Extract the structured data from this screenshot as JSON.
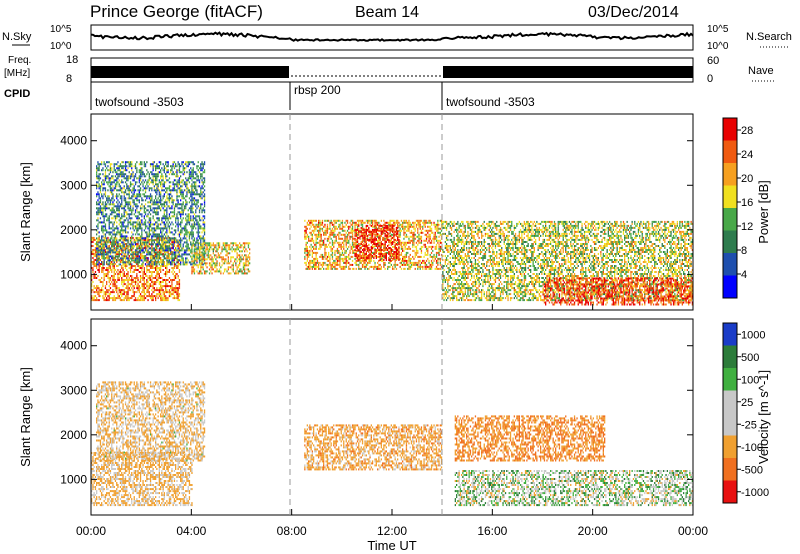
{
  "header": {
    "station": "Prince George (fitACF)",
    "beam": "Beam 14",
    "date": "03/Dec/2014"
  },
  "strips": {
    "nsky_label": "N.Sky",
    "nsearch_label": "N.Search",
    "nsky_ticks": [
      "10^5",
      "10^0"
    ],
    "nsearch_ticks": [
      "10^5",
      "10^0"
    ],
    "freq_label": "Freq.",
    "freq_unit": "[MHz]",
    "freq_ticks": [
      "18",
      "8"
    ],
    "nave_label": "Nave",
    "nave_ticks": [
      "60",
      "0"
    ],
    "cpid_label": "CPID",
    "cpid_segments": [
      "twofsound -3503",
      "rbsp 200",
      "twofsound -3503"
    ]
  },
  "colors": {
    "power_scale": [
      "#0000ff",
      "#1e4fae",
      "#2e7c4e",
      "#48a848",
      "#f0e020",
      "#f6a020",
      "#f05a10",
      "#e80000"
    ],
    "velocity_scale": [
      "#1a3cc8",
      "#2c7c3a",
      "#40b040",
      "#c8c8c8",
      "#c8c8c8",
      "#f0a030",
      "#f07020",
      "#e81010"
    ]
  },
  "chart_data": [
    {
      "type": "heatmap",
      "quantity": "power",
      "xlabel": "Time UT",
      "ylabel": "Slant Range [km]",
      "xticks": [
        "00:00",
        "04:00",
        "08:00",
        "12:00",
        "16:00",
        "20:00",
        "00:00"
      ],
      "xlim_hours": [
        0,
        24
      ],
      "yticks": [
        1000,
        2000,
        3000,
        4000
      ],
      "ylim": [
        200,
        4600
      ],
      "colorbar_label": "Power [dB]",
      "colorbar_ticks": [
        4,
        8,
        12,
        16,
        20,
        24,
        28
      ],
      "colorbar_range": [
        0,
        30
      ],
      "mode_change_hours": [
        8.0,
        14.0
      ],
      "echo_regions": [
        {
          "t_start": 0.0,
          "t_end": 3.5,
          "range_min": 400,
          "range_max": 1800,
          "power": 22
        },
        {
          "t_start": 0.2,
          "t_end": 4.5,
          "range_min": 1200,
          "range_max": 3500,
          "power": 10
        },
        {
          "t_start": 4.0,
          "t_end": 6.3,
          "range_min": 1000,
          "range_max": 1700,
          "power": 18
        },
        {
          "t_start": 8.5,
          "t_end": 14.0,
          "range_min": 1100,
          "range_max": 2200,
          "power": 20
        },
        {
          "t_start": 10.5,
          "t_end": 12.3,
          "range_min": 1300,
          "range_max": 2100,
          "power": 28
        },
        {
          "t_start": 14.0,
          "t_end": 24.0,
          "range_min": 400,
          "range_max": 2200,
          "power": 16
        },
        {
          "t_start": 18.0,
          "t_end": 24.0,
          "range_min": 300,
          "range_max": 900,
          "power": 26
        }
      ]
    },
    {
      "type": "heatmap",
      "quantity": "velocity",
      "xlabel": "Time UT",
      "ylabel": "Slant Range [km]",
      "xticks": [
        "00:00",
        "04:00",
        "08:00",
        "12:00",
        "16:00",
        "20:00",
        "00:00"
      ],
      "xlim_hours": [
        0,
        24
      ],
      "yticks": [
        1000,
        2000,
        3000,
        4000
      ],
      "ylim": [
        200,
        4600
      ],
      "colorbar_label": "Velocity [m s^-1]",
      "colorbar_ticks": [
        "1000",
        "500",
        "100",
        "25",
        "-25",
        "-100",
        "-500",
        "-1000"
      ],
      "mode_change_hours": [
        8.0,
        14.0
      ],
      "echo_regions": [
        {
          "t_start": 0.0,
          "t_end": 4.0,
          "range_min": 400,
          "range_max": 1600,
          "velocity": -150
        },
        {
          "t_start": 0.2,
          "t_end": 4.5,
          "range_min": 1400,
          "range_max": 3200,
          "velocity": -120
        },
        {
          "t_start": 8.5,
          "t_end": 14.0,
          "range_min": 1200,
          "range_max": 2200,
          "velocity": -200
        },
        {
          "t_start": 14.5,
          "t_end": 24.0,
          "range_min": 400,
          "range_max": 1200,
          "velocity": 0
        },
        {
          "t_start": 14.5,
          "t_end": 20.5,
          "range_min": 1400,
          "range_max": 2400,
          "velocity": -300
        }
      ]
    }
  ]
}
